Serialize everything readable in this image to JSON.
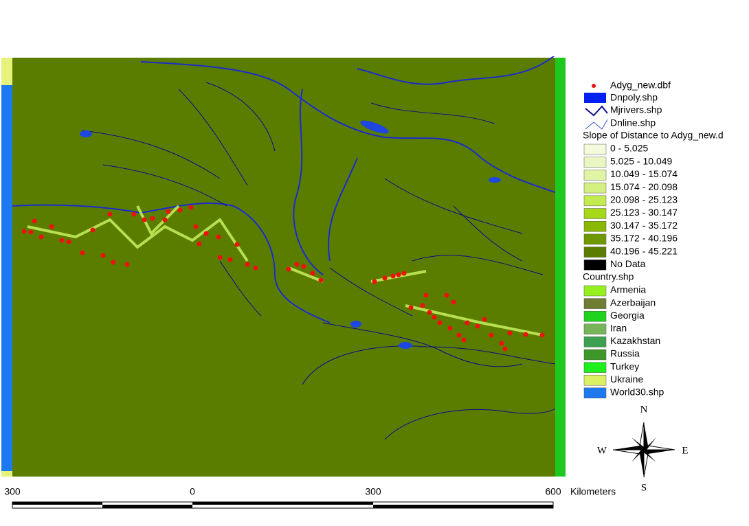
{
  "legend": {
    "points": "Adyg_new.dbf",
    "polys": "Dnpoly.shp",
    "rivers": "Mjrivers.shp",
    "lines": "Dnline.shp",
    "slope_title": "Slope of Distance to Adyg_new.d",
    "slope_classes": [
      {
        "label": "0 - 5.025",
        "color": "#f4fadc"
      },
      {
        "label": "5.025 - 10.049",
        "color": "#eaf7c2"
      },
      {
        "label": "10.049 - 15.074",
        "color": "#e0f4a6"
      },
      {
        "label": "15.074 - 20.098",
        "color": "#d4f080"
      },
      {
        "label": "20.098 - 25.123",
        "color": "#c4ec50"
      },
      {
        "label": "25.123 - 30.147",
        "color": "#a6d81a"
      },
      {
        "label": "30.147 - 35.172",
        "color": "#88b800"
      },
      {
        "label": "35.172 - 40.196",
        "color": "#6e9800"
      },
      {
        "label": "40.196 - 45.221",
        "color": "#5a7d00"
      },
      {
        "label": "No Data",
        "color": "#000000"
      }
    ],
    "country_title": "Country.shp",
    "countries": [
      {
        "label": "Armenia",
        "color": "#96f01e"
      },
      {
        "label": "Azerbaijan",
        "color": "#6e7d32"
      },
      {
        "label": "Georgia",
        "color": "#1ed21e"
      },
      {
        "label": "Iran",
        "color": "#78b45a"
      },
      {
        "label": "Kazakhstan",
        "color": "#3ca050"
      },
      {
        "label": "Russia",
        "color": "#3c9628"
      },
      {
        "label": "Turkey",
        "color": "#1ef01e"
      },
      {
        "label": "Ukraine",
        "color": "#dcf064"
      },
      {
        "label": "World30.shp",
        "color": "#1e78f0"
      }
    ]
  },
  "scale_bar": {
    "labels": [
      "300",
      "0",
      "300",
      "600"
    ],
    "unit": "Kilometers"
  },
  "compass": {
    "n": "N",
    "s": "S",
    "e": "E",
    "w": "W"
  }
}
